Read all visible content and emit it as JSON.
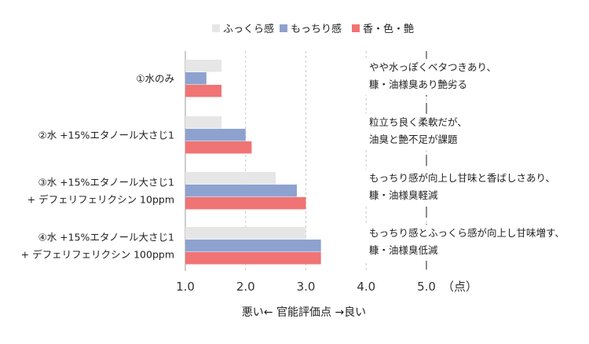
{
  "chart_data": {
    "type": "bar",
    "orientation": "horizontal",
    "categories": [
      [
        "①水のみ"
      ],
      [
        "②水 +15%エタノール大さじ1"
      ],
      [
        "③水 +15%エタノール大さじ1",
        "+ デフェリフェリクシン 10ppm"
      ],
      [
        "④水 +15%エタノール大さじ1",
        "+ デフェリフェリクシン 100ppm"
      ]
    ],
    "series": [
      {
        "name": "ふっくら感",
        "color": "#e6e6e6",
        "values": [
          1.6,
          1.6,
          2.5,
          3.0
        ]
      },
      {
        "name": "もっちり感",
        "color": "#8ea2cf",
        "values": [
          1.35,
          2.0,
          2.85,
          3.25
        ]
      },
      {
        "name": "香・色・艶",
        "color": "#f07474",
        "values": [
          1.6,
          2.1,
          3.0,
          3.25
        ]
      }
    ],
    "annotations": [
      [
        "やや水っぽくベタつきあり、",
        "糠・油様臭あり艶劣る"
      ],
      [
        "粒立ち良く柔軟だが、",
        "油臭と艶不足が課題"
      ],
      [
        "もっちり感が向上し甘味と香ばしさあり、",
        "糠・油様臭軽減"
      ],
      [
        "もっちり感とふっくら感が向上し甘味増す、",
        "糠・油様臭低減"
      ]
    ],
    "xlim": [
      1.0,
      5.0
    ],
    "xticks": [
      "1.0",
      "2.0",
      "3.0",
      "4.0",
      "5.0"
    ],
    "x_unit": "（点）",
    "xlabel": "悪い← 官能評価点 →良い",
    "legend_position": "top",
    "grid": "vertical-dashed"
  }
}
